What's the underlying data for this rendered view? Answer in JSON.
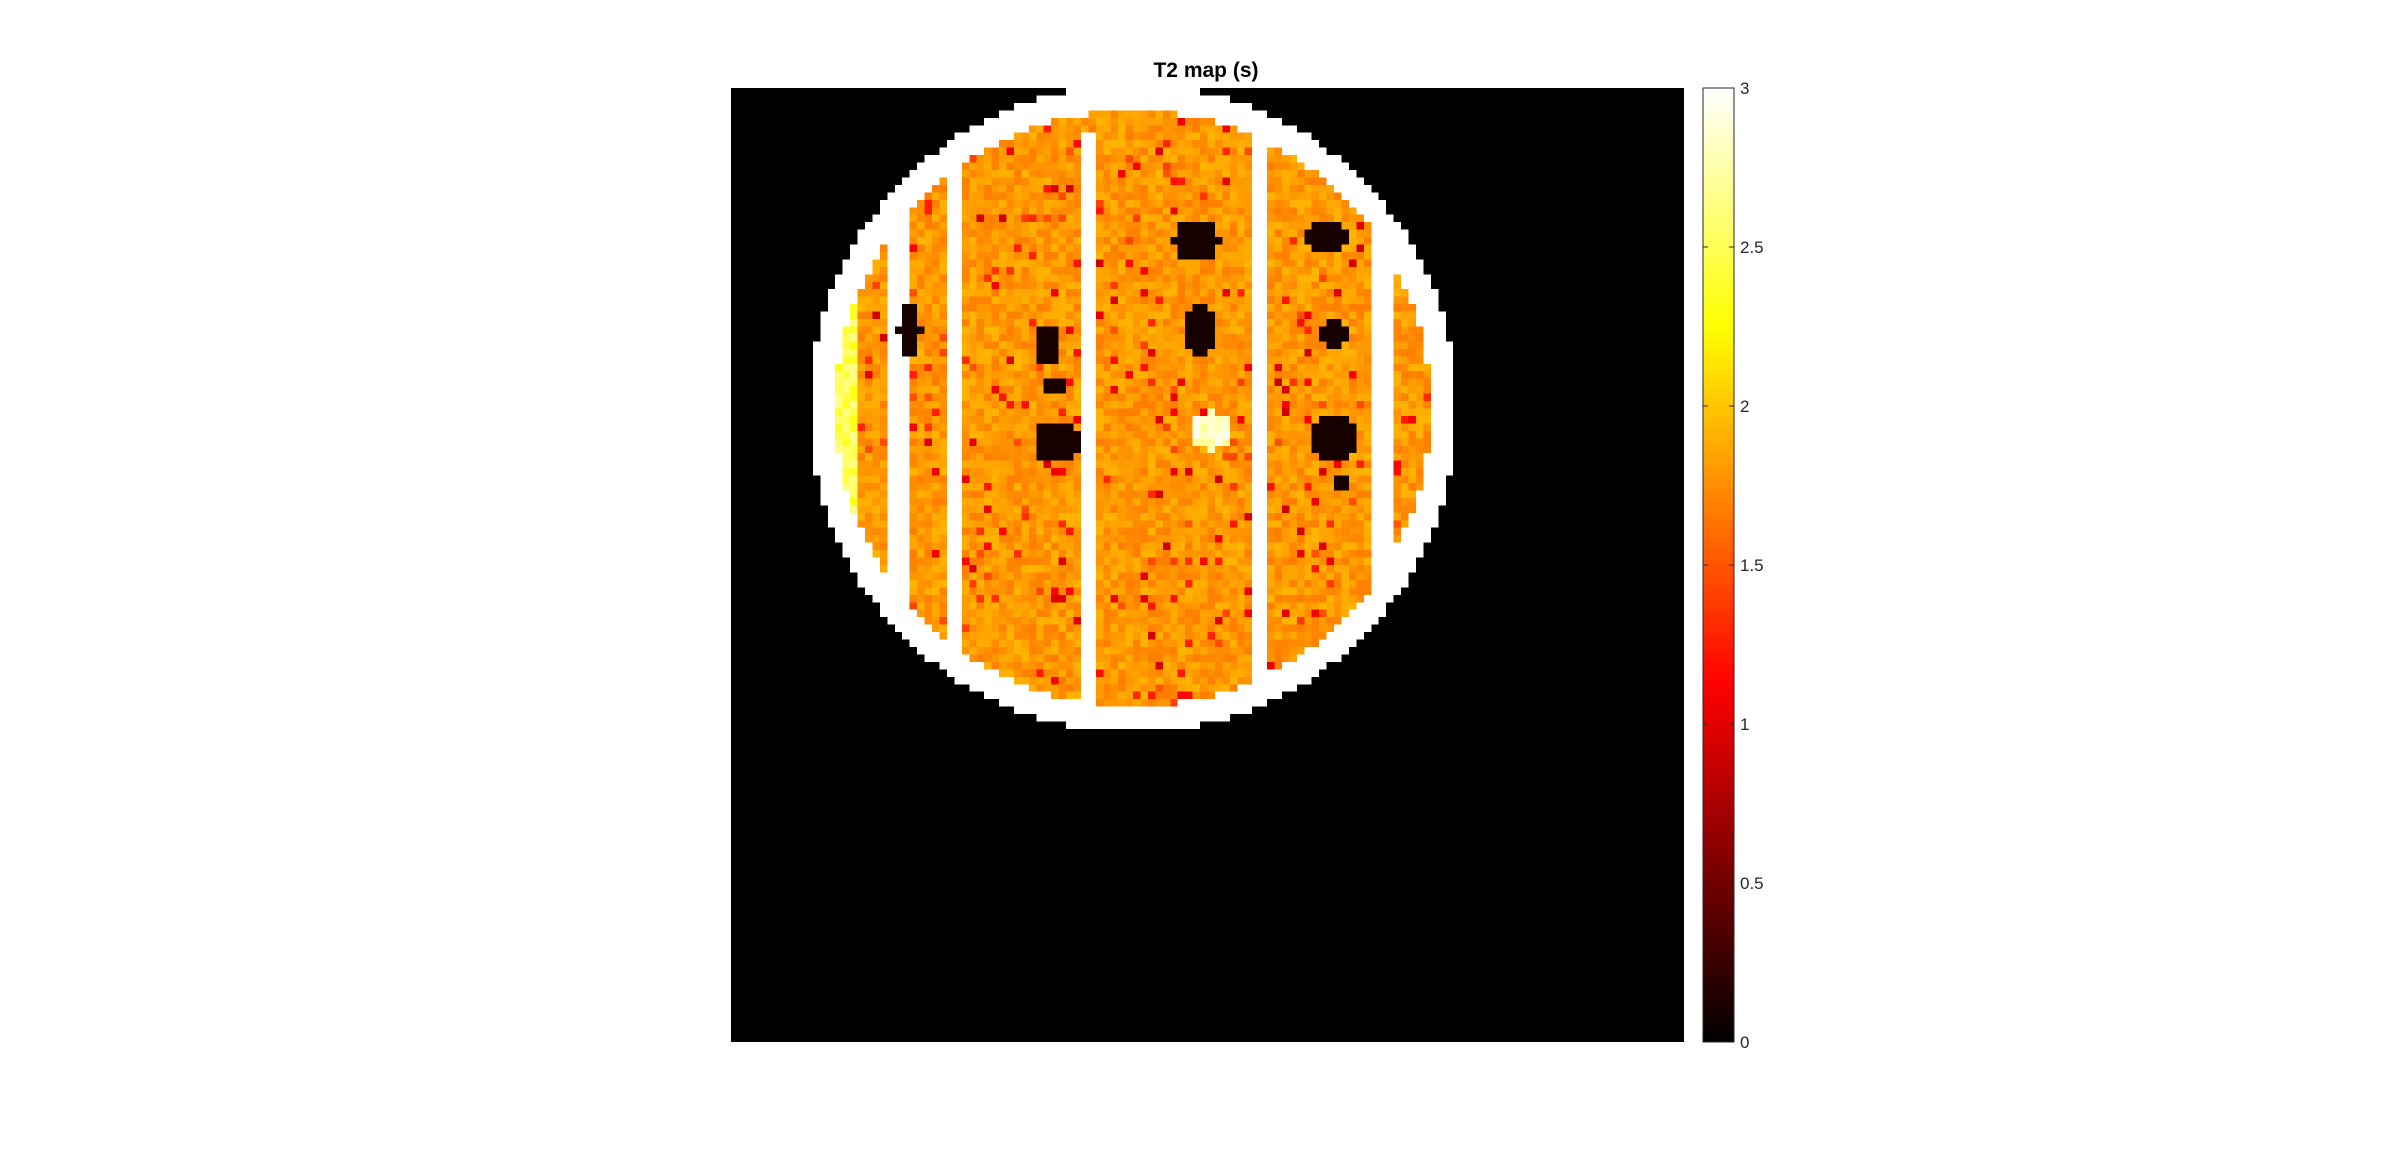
{
  "chart_data": {
    "type": "heatmap",
    "title": "T2 map (s)",
    "xlabel": "",
    "ylabel": "",
    "colormap": "hot",
    "colorbar": {
      "range": [
        0,
        3
      ],
      "ticks": [
        {
          "value": 0,
          "label": "0"
        },
        {
          "value": 0.5,
          "label": "0.5"
        },
        {
          "value": 1,
          "label": "1"
        },
        {
          "value": 1.5,
          "label": "1.5"
        },
        {
          "value": 2,
          "label": "2"
        },
        {
          "value": 2.5,
          "label": "2.5"
        },
        {
          "value": 3,
          "label": "3"
        }
      ]
    },
    "axes_visible": false,
    "image_size": [
      128,
      128
    ],
    "background_value": 0,
    "phantom_rim_value": 3,
    "fill_value": 1.8,
    "rods_value": 3,
    "holes_value": 0.1
  },
  "colors": {
    "background": "#ffffff",
    "axes_background": "#000000",
    "colorbar_border": "#262626"
  }
}
